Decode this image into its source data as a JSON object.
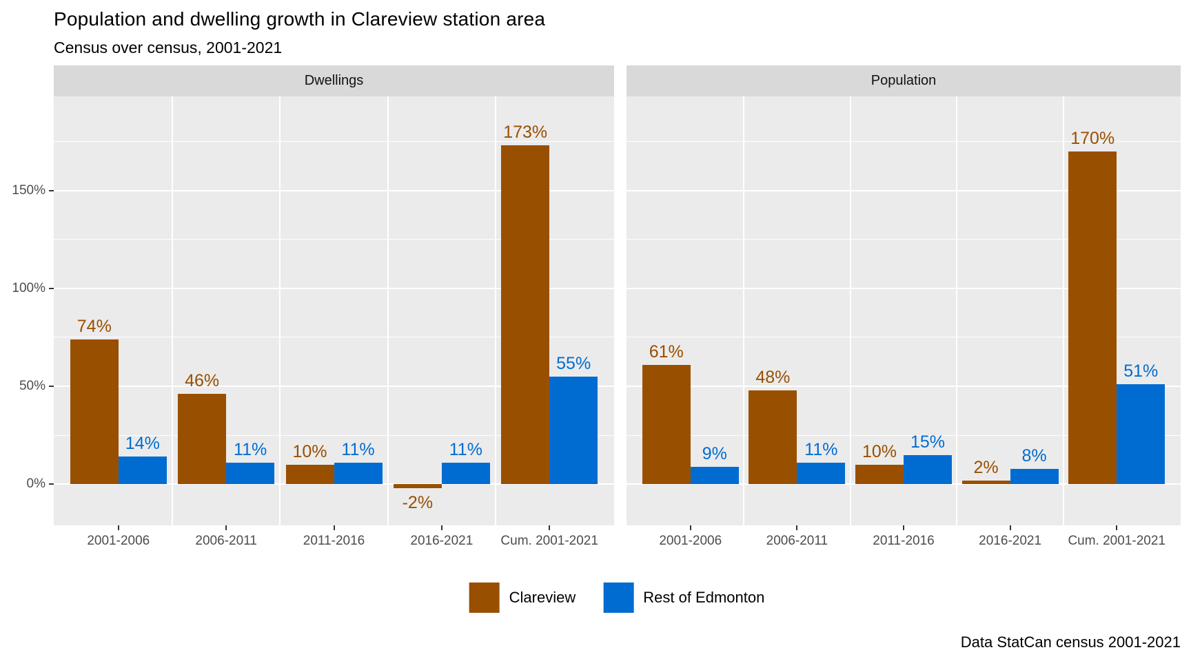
{
  "title": "Population and dwelling growth in Clareview station area",
  "subtitle": "Census over census, 2001-2021",
  "caption": "Data StatCan census 2001-2021",
  "colors": {
    "clareview": "#994F00",
    "rest_of_edmonton": "#006CD1",
    "panel_background": "#EBEBEB",
    "strip_background": "#D9D9D9",
    "gridline": "#FFFFFF",
    "axis_text": "#4D4D4D",
    "tick_mark": "#333333"
  },
  "legend": {
    "items": [
      {
        "label": "Clareview",
        "color": "#994F00"
      },
      {
        "label": "Rest of Edmonton",
        "color": "#006CD1"
      }
    ]
  },
  "chart_data": {
    "type": "bar",
    "title": "Population and dwelling growth in Clareview station area",
    "subtitle": "Census over census, 2001-2021",
    "caption": "Data StatCan census 2001-2021",
    "categories": [
      "2001-2006",
      "2006-2011",
      "2011-2016",
      "2016-2021",
      "Cum. 2001-2021"
    ],
    "facets": [
      {
        "label": "Dwellings",
        "series": [
          {
            "name": "Clareview",
            "color": "#994F00",
            "values": [
              74,
              46,
              10,
              -2,
              173
            ]
          },
          {
            "name": "Rest of Edmonton",
            "color": "#006CD1",
            "values": [
              14,
              11,
              11,
              11,
              55
            ]
          }
        ]
      },
      {
        "label": "Population",
        "series": [
          {
            "name": "Clareview",
            "color": "#994F00",
            "values": [
              61,
              48,
              10,
              2,
              170
            ]
          },
          {
            "name": "Rest of Edmonton",
            "color": "#006CD1",
            "values": [
              9,
              11,
              15,
              8,
              51
            ]
          }
        ]
      }
    ],
    "value_labels": "percent",
    "y_ticks": [
      0,
      50,
      100,
      150
    ],
    "y_tick_labels": [
      "0%",
      "50%",
      "100%",
      "150%"
    ],
    "y_minor_ticks": [
      25,
      75,
      125,
      175
    ],
    "ylim": [
      -21,
      198
    ],
    "grid": true,
    "legend_position": "bottom"
  }
}
